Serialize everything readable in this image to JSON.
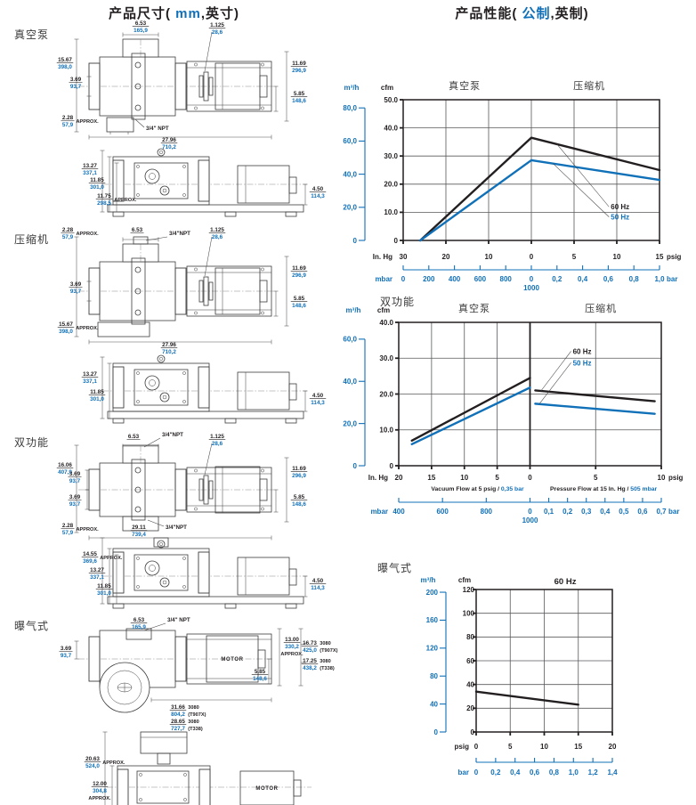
{
  "page": {
    "left_title": {
      "pre": "产品尺寸(",
      "metric": " mm",
      "post": ",英寸)"
    },
    "right_title": {
      "pre": "产品性能(",
      "metric": " 公制",
      "post": ",英制)"
    },
    "colors": {
      "metric_blue": "#1070b8",
      "ink": "#231f20"
    }
  },
  "sections": {
    "vacuum": "真空泵",
    "compressor": "压缩机",
    "dual": "双功能",
    "aeration": "曝气式"
  },
  "dims": {
    "vac_plan": {
      "top_width": {
        "in": "6.53",
        "mm": "165,9"
      },
      "coupling": {
        "in": "1.125",
        "mm": "28,6"
      },
      "height_overall": {
        "in": "15.67",
        "mm": "398,0"
      },
      "port_offset": {
        "in": "3.69",
        "mm": "93,7"
      },
      "motor_height": {
        "in": "11.69",
        "mm": "296,9"
      },
      "shaft_height": {
        "in": "5.85",
        "mm": "148,6"
      },
      "npt": "3/4\" NPT",
      "base_offset": {
        "in": "2.28",
        "mm": "57,9",
        "suffix": "APPROX."
      },
      "length_overall": {
        "in": "27.96",
        "mm": "710,2"
      }
    },
    "vac_front": {
      "h1": {
        "in": "13.27",
        "mm": "337,1"
      },
      "h2": {
        "in": "11.85",
        "mm": "301,0"
      },
      "h3": {
        "in": "11.75",
        "mm": "298,5",
        "suffix": "APPROX."
      },
      "shaft": {
        "in": "4.50",
        "mm": "114,3"
      }
    },
    "comp_plan": {
      "base_offset": {
        "in": "2.28",
        "mm": "57,9",
        "suffix": "APPROX."
      },
      "top_width": {
        "in": "6.53"
      },
      "npt": "3/4\"NPT",
      "coupling": {
        "in": "1.125",
        "mm": "28,6"
      },
      "port_offset": {
        "in": "3.69",
        "mm": "93,7"
      },
      "height_overall": {
        "in": "15.67",
        "mm": "398,0",
        "suffix": "APPROX."
      },
      "motor_height": {
        "in": "11.69",
        "mm": "296,9"
      },
      "shaft_height": {
        "in": "5.85",
        "mm": "148,6"
      },
      "length_overall": {
        "in": "27.96",
        "mm": "710,2"
      }
    },
    "comp_front": {
      "h1": {
        "in": "13.27",
        "mm": "337,1"
      },
      "h2": {
        "in": "11.85",
        "mm": "301,0"
      },
      "shaft": {
        "in": "4.50",
        "mm": "114,3"
      }
    },
    "dual_plan": {
      "npt_top": "3/4\"NPT",
      "top_width": {
        "in": "6.53"
      },
      "coupling": {
        "in": "1.125",
        "mm": "28,6"
      },
      "height_overall": {
        "in": "16.06",
        "mm": "407,9"
      },
      "port_offset_a": {
        "in": "3.69",
        "mm": "93,7"
      },
      "port_offset_b": {
        "in": "3.69",
        "mm": "93,7"
      },
      "motor_height": {
        "in": "11.69",
        "mm": "296,9"
      },
      "shaft_height": {
        "in": "5.85",
        "mm": "148,6"
      },
      "npt_bottom": "3/4\"NPT",
      "base_offset": {
        "in": "2.28",
        "mm": "57,9",
        "suffix": "APPROX."
      },
      "length_overall": {
        "in": "29.11",
        "mm": "739,4"
      }
    },
    "dual_front": {
      "h1": {
        "in": "14.55",
        "mm": "369,6",
        "suffix": "APPROX."
      },
      "h2": {
        "in": "13.27",
        "mm": "337,1"
      },
      "h3": {
        "in": "11.85",
        "mm": "301,0"
      },
      "shaft": {
        "in": "4.50",
        "mm": "114,3"
      }
    },
    "aer_plan": {
      "top_width": {
        "in": "6.53",
        "mm": "165,9"
      },
      "npt": "3/4\" NPT",
      "port_offset": {
        "in": "3.69",
        "mm": "93,7"
      },
      "motor_label": "MOTOR",
      "height_right": {
        "in": "13.00",
        "mm": "330,2",
        "suffix": "APPROX.",
        "below": true
      },
      "shaft_height": {
        "in": "5.85",
        "mm": "148,6"
      },
      "height_t907x": {
        "in": "16.73",
        "mm": "425,0",
        "rt": "3080",
        "rb": "(T907X)"
      },
      "height_t338": {
        "in": "17.25",
        "mm": "438,2",
        "rt": "3080",
        "rb": "(T338)"
      },
      "length_t907x": {
        "in": "31.66",
        "mm": "804,2",
        "rt": "3080",
        "rb": "(T907X)"
      },
      "length_t338": {
        "in": "28.65",
        "mm": "727,7",
        "rt": "3080",
        "rb": "(T338)"
      }
    },
    "aer_front": {
      "h1": {
        "in": "20.63",
        "mm": "524,0",
        "suffix": "APPROX."
      },
      "h2": {
        "in": "12.00",
        "mm": "304,8",
        "suffix": "APPROX.",
        "below": true
      },
      "motor_label": "MOTOR"
    }
  },
  "chart_data": [
    {
      "name": "vacuum-pump-and-compressor-performance",
      "type": "line",
      "zone_labels": [
        {
          "u": 0.24,
          "text": "真空泵"
        },
        {
          "u": 0.726,
          "text": "压缩机"
        }
      ],
      "y_primary": {
        "unit": "cfm",
        "min": 0,
        "max": 50,
        "tick_labels": [
          "0",
          "10.0",
          "20.0",
          "30.0",
          "40.0",
          "50.0"
        ]
      },
      "y_secondary": {
        "unit": "m³/h",
        "m3h_to_cfm": 0.5886,
        "ticks": [
          {
            "v": 80,
            "label": "80,0"
          },
          {
            "v": 60,
            "label": "60,0"
          },
          {
            "v": 40,
            "label": "40,0"
          },
          {
            "v": 20,
            "label": "20,0"
          },
          {
            "v": 0,
            "label": "0"
          }
        ]
      },
      "x_maps": {
        "vac": {
          "v0": 30,
          "v1": 0,
          "u0": 0,
          "u1": 0.5
        },
        "press": {
          "v0": 0,
          "v1": 15,
          "u0": 0.5,
          "u1": 1
        }
      },
      "x_primary": {
        "prefix": "In. Hg",
        "suffix": "psig",
        "ticks": [
          {
            "side": "vac",
            "v": 30,
            "label": "30"
          },
          {
            "side": "vac",
            "v": 20,
            "label": "20",
            "grid": true
          },
          {
            "side": "vac",
            "v": 10,
            "label": "10",
            "grid": true
          },
          {
            "side": "vac",
            "v": 0,
            "label": "0",
            "grid": true
          },
          {
            "side": "press",
            "v": 5,
            "label": "5",
            "grid": true
          },
          {
            "side": "press",
            "v": 10,
            "label": "10",
            "grid": true
          },
          {
            "side": "press",
            "v": 15,
            "label": "15"
          }
        ]
      },
      "x_secondary": {
        "prefix": "mbar",
        "suffix": "bar",
        "ticks": [
          {
            "u": 0,
            "label": "0"
          },
          {
            "u": 0.1,
            "label": "200"
          },
          {
            "u": 0.2,
            "label": "400"
          },
          {
            "u": 0.3,
            "label": "600"
          },
          {
            "u": 0.4,
            "label": "800"
          },
          {
            "u": 0.5,
            "label": "0",
            "label2": "1000"
          },
          {
            "u": 0.6,
            "label": "0,2"
          },
          {
            "u": 0.7,
            "label": "0,4"
          },
          {
            "u": 0.8,
            "label": "0,6"
          },
          {
            "u": 0.9,
            "label": "0,8"
          },
          {
            "u": 1,
            "label": "1,0"
          }
        ]
      },
      "series": [
        {
          "name": "60 Hz",
          "color": "#231f20",
          "segments": [
            [
              [
                "vac",
                26,
                0
              ],
              [
                "vac",
                0,
                36.5
              ],
              [
                "press",
                15,
                25
              ]
            ]
          ]
        },
        {
          "name": "50 Hz",
          "color": "#1070b8",
          "segments": [
            [
              [
                "vac",
                26,
                0
              ],
              [
                "vac",
                0,
                28.5
              ],
              [
                "press",
                15,
                21.5
              ]
            ]
          ]
        }
      ],
      "callouts": [
        {
          "text": "60 Hz",
          "color": "#231f20",
          "label_u": 0.81,
          "label_cfm": 11,
          "end_u": 0.6,
          "end_cfm": 34.2
        },
        {
          "text": "50 Hz",
          "color": "#1070b8",
          "label_u": 0.81,
          "label_cfm": 7.4,
          "end_u": 0.585,
          "end_cfm": 27.3
        }
      ]
    },
    {
      "name": "dual-function-performance",
      "type": "line",
      "zone_labels": [
        {
          "u": 0.288,
          "text": "真空泵"
        },
        {
          "u": 0.77,
          "text": "压缩机"
        }
      ],
      "y_primary": {
        "unit": "cfm",
        "min": 0,
        "max": 40,
        "tick_labels": [
          "0",
          "10.0",
          "20.0",
          "30.0",
          "40.0"
        ]
      },
      "y_secondary": {
        "unit": "m³/h",
        "m3h_to_cfm": 0.5886,
        "ticks": [
          {
            "v": 60,
            "label": "60,0"
          },
          {
            "v": 40,
            "label": "40,0"
          },
          {
            "v": 20,
            "label": "20,0"
          },
          {
            "v": 0,
            "label": "0"
          }
        ]
      },
      "x_maps": {
        "vac": {
          "v0": 20,
          "v1": 0,
          "u0": 0,
          "u1": 0.5
        },
        "press": {
          "v0": 0,
          "v1": 10,
          "u0": 0.5,
          "u1": 1
        }
      },
      "x_primary": {
        "prefix": "In. Hg",
        "suffix": "psig",
        "ticks": [
          {
            "side": "vac",
            "v": 20,
            "label": "20"
          },
          {
            "side": "vac",
            "v": 15,
            "label": "15",
            "grid": true
          },
          {
            "side": "vac",
            "v": 10,
            "label": "10",
            "grid": true
          },
          {
            "side": "vac",
            "v": 5,
            "label": "5",
            "grid": true
          },
          {
            "side": "vac",
            "v": 0,
            "label": "0",
            "grid": true,
            "divider": true
          },
          {
            "side": "press",
            "v": 5,
            "label": "5",
            "grid": true
          },
          {
            "side": "press",
            "v": 10,
            "label": "10"
          }
        ]
      },
      "x_secondary": {
        "prefix": "mbar",
        "suffix": "bar",
        "ticks": [
          {
            "u": 0,
            "label": "400"
          },
          {
            "u": 0.1667,
            "label": "600"
          },
          {
            "u": 0.3333,
            "label": "800"
          },
          {
            "u": 0.5,
            "label": "0",
            "label2": "1000"
          },
          {
            "u": 0.5714,
            "label": "0,1"
          },
          {
            "u": 0.6429,
            "label": "0,2"
          },
          {
            "u": 0.7143,
            "label": "0,3"
          },
          {
            "u": 0.7857,
            "label": "0,4"
          },
          {
            "u": 0.8571,
            "label": "0,5"
          },
          {
            "u": 0.9286,
            "label": "0,6"
          },
          {
            "u": 1,
            "label": "0,7"
          }
        ]
      },
      "flow_notes": [
        {
          "black": "Vacuum Flow at 5 psig /",
          "blue": "0,35 bar",
          "u": 0.3
        },
        {
          "black": "Pressure Flow at 15 In. Hg /",
          "blue": "505 mbar",
          "u": 0.78
        }
      ],
      "series": [
        {
          "name": "60 Hz",
          "color": "#231f20",
          "segments": [
            [
              [
                "vac",
                18,
                7
              ],
              [
                "vac",
                0,
                24.5
              ]
            ],
            [
              [
                "press",
                0.4,
                21
              ],
              [
                "press",
                9.5,
                18
              ]
            ]
          ]
        },
        {
          "name": "50 Hz",
          "color": "#1070b8",
          "segments": [
            [
              [
                "vac",
                18,
                6
              ],
              [
                "vac",
                0,
                21.8
              ]
            ],
            [
              [
                "press",
                0.4,
                17.3
              ],
              [
                "press",
                9.5,
                14.5
              ]
            ]
          ]
        }
      ],
      "callouts": [
        {
          "text": "60 Hz",
          "color": "#231f20",
          "label_u": 0.663,
          "label_cfm": 31.2,
          "end_u": 0.542,
          "end_cfm": 20.9
        },
        {
          "text": "50 Hz",
          "color": "#1070b8",
          "label_u": 0.663,
          "label_cfm": 28,
          "end_u": 0.535,
          "end_cfm": 17.2
        }
      ]
    },
    {
      "name": "aeration-performance",
      "type": "line",
      "zone_labels": [
        {
          "u": 0.654,
          "text": "60 Hz",
          "bold": true
        }
      ],
      "y_primary": {
        "unit": "cfm",
        "min": 0,
        "max": 120,
        "tick_labels": [
          "0",
          "20",
          "40",
          "60",
          "80",
          "100",
          "120"
        ]
      },
      "y_secondary": {
        "unit": "m³/h",
        "m3h_to_cfm": 0.5886,
        "ticks": [
          {
            "v": 200,
            "label": "200"
          },
          {
            "v": 160,
            "label": "160"
          },
          {
            "v": 120,
            "label": "120"
          },
          {
            "v": 80,
            "label": "80"
          },
          {
            "v": 40,
            "label": "40"
          },
          {
            "v": 0,
            "label": "0"
          }
        ]
      },
      "x_maps": {
        "press": {
          "v0": 0,
          "v1": 20,
          "u0": 0,
          "u1": 1
        }
      },
      "x_primary": {
        "prefix": "psig",
        "suffix": null,
        "ticks": [
          {
            "side": "press",
            "v": 0,
            "label": "0"
          },
          {
            "side": "press",
            "v": 5,
            "label": "5",
            "grid": true
          },
          {
            "side": "press",
            "v": 10,
            "label": "10",
            "grid": true
          },
          {
            "side": "press",
            "v": 15,
            "label": "15",
            "grid": true
          },
          {
            "side": "press",
            "v": 20,
            "label": "20"
          }
        ]
      },
      "x_secondary": {
        "prefix": "bar",
        "suffix": null,
        "ticks": [
          {
            "u": 0,
            "label": "0"
          },
          {
            "u": 0.1429,
            "label": "0,2"
          },
          {
            "u": 0.2857,
            "label": "0,4"
          },
          {
            "u": 0.4286,
            "label": "0,6"
          },
          {
            "u": 0.5714,
            "label": "0,8"
          },
          {
            "u": 0.7143,
            "label": "1,0"
          },
          {
            "u": 0.8571,
            "label": "1,2"
          },
          {
            "u": 1,
            "label": "1,4"
          }
        ]
      },
      "series": [
        {
          "name": "60 Hz",
          "color": "#231f20",
          "segments": [
            [
              [
                "press",
                0,
                34
              ],
              [
                "press",
                15,
                23
              ]
            ]
          ]
        }
      ],
      "callouts": []
    }
  ]
}
